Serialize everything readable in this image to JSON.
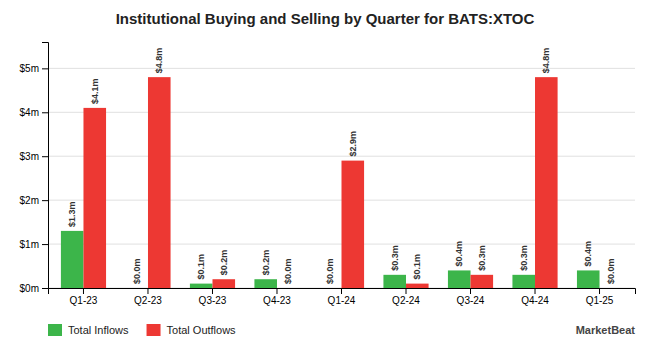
{
  "chart_data": {
    "type": "bar",
    "title": "Institutional Buying and Selling by Quarter for BATS:XTOC",
    "categories": [
      "Q1-23",
      "Q2-23",
      "Q3-23",
      "Q4-23",
      "Q1-24",
      "Q2-24",
      "Q3-24",
      "Q4-24",
      "Q1-25"
    ],
    "series": [
      {
        "name": "Total Inflows",
        "color": "#3cb54a",
        "values": [
          1.3,
          0.0,
          0.1,
          0.2,
          0.0,
          0.3,
          0.4,
          0.3,
          0.4
        ],
        "value_labels": [
          "$1.3m",
          "$0.0m",
          "$0.1m",
          "$0.2m",
          "$0.0m",
          "$0.3m",
          "$0.4m",
          "$0.3m",
          "$0.4m"
        ]
      },
      {
        "name": "Total Outflows",
        "color": "#ed3833",
        "values": [
          4.1,
          4.8,
          0.2,
          0.0,
          2.9,
          0.1,
          0.3,
          4.8,
          0.0
        ],
        "value_labels": [
          "$4.1m",
          "$4.8m",
          "$0.2m",
          "$0.0m",
          "$2.9m",
          "$0.1m",
          "$0.3m",
          "$4.8m",
          "$0.0m"
        ]
      }
    ],
    "ylim": [
      0,
      5.6
    ],
    "yticks": [
      {
        "value": 0,
        "label": "$0m"
      },
      {
        "value": 1,
        "label": "$1m"
      },
      {
        "value": 2,
        "label": "$2m"
      },
      {
        "value": 3,
        "label": "$3m"
      },
      {
        "value": 4,
        "label": "$4m"
      },
      {
        "value": 5,
        "label": "$5m"
      }
    ],
    "grid": true,
    "legend": "bottom",
    "data_labels": true,
    "annotations": [
      "MarketBeat"
    ]
  }
}
